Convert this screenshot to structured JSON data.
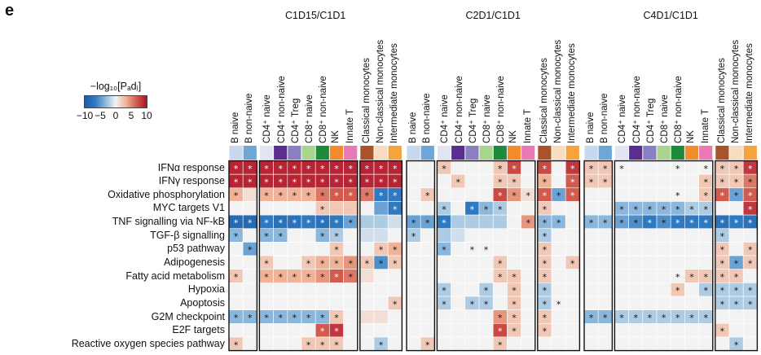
{
  "panel_letter": "e",
  "legend": {
    "title": "−log₁₀[Pₐdⱼ]",
    "ticks": [
      "−10",
      "−5",
      "0",
      "5",
      "10"
    ]
  },
  "colors": {
    "neg_strong": "#1e5aa8",
    "pos_strong": "#b0122c",
    "neutral": "#f3f3f3",
    "star": "#111111",
    "star_on_dark": "#ffffff"
  },
  "chart_data": {
    "type": "heatmap",
    "value_range": [
      -10,
      10
    ],
    "groups": [
      {
        "title": "C1D15/C1D1"
      },
      {
        "title": "C2D1/C1D1"
      },
      {
        "title": "C4D1/C1D1"
      }
    ],
    "columns": [
      {
        "label": "B naive",
        "subset": "B",
        "color": "#c7d9ee"
      },
      {
        "label": "B non-naive",
        "subset": "B",
        "color": "#6fa6d8"
      },
      {
        "label": "CD4⁺ naive",
        "subset": "T",
        "color": "#e2e6f3"
      },
      {
        "label": "CD4⁺ non-naive",
        "subset": "T",
        "color": "#5b2d8f"
      },
      {
        "label": "CD4⁺ Treg",
        "subset": "T",
        "color": "#8a7fc2"
      },
      {
        "label": "CD8⁺ naive",
        "subset": "T",
        "color": "#a7d58c"
      },
      {
        "label": "CD8⁺ non-naive",
        "subset": "T",
        "color": "#1d8a3c"
      },
      {
        "label": "NK",
        "subset": "T",
        "color": "#f28b2a"
      },
      {
        "label": "Innate T",
        "subset": "T",
        "color": "#e879b5"
      },
      {
        "label": "Classical monocytes",
        "subset": "M",
        "color": "#a9532b"
      },
      {
        "label": "Non-classical monocytes",
        "subset": "M",
        "color": "#f8dcc0"
      },
      {
        "label": "Intermediate monocytes",
        "subset": "M",
        "color": "#f5a33b"
      }
    ],
    "rows": [
      "IFNα response",
      "IFNγ response",
      "Oxidative phosphorylation",
      "MYC targets V1",
      "TNF signalling via NF-kB",
      "TGF-β signalling",
      "p53 pathway",
      "Adipogenesis",
      "Fatty acid metabolism",
      "Hypoxia",
      "Apoptosis",
      "G2M checkpoint",
      "E2F targets",
      "Reactive oxygen species pathway"
    ],
    "matrices": [
      {
        "values": [
          [
            9,
            9,
            9,
            9,
            9,
            9,
            9,
            9,
            9,
            9,
            9,
            9
          ],
          [
            9,
            9,
            9,
            9,
            9,
            9,
            9,
            9,
            9,
            9,
            9,
            9
          ],
          [
            3,
            1,
            3,
            3,
            3,
            3,
            5,
            6,
            6,
            5,
            -6,
            -6
          ],
          [
            0,
            0,
            0,
            0,
            0,
            0,
            2,
            2,
            2,
            0,
            -4,
            -6
          ],
          [
            -8,
            -8,
            -6,
            -7,
            -7,
            -6,
            -7,
            -6,
            -4,
            -2,
            -2,
            -1
          ],
          [
            -3,
            0,
            -3,
            -3,
            0,
            0,
            -3,
            -2,
            0,
            -1,
            -1,
            0
          ],
          [
            0,
            -4,
            0,
            0,
            0,
            0,
            0,
            2,
            0,
            0,
            2,
            3
          ],
          [
            0,
            0,
            2,
            0,
            0,
            2,
            3,
            3,
            4,
            2,
            -5,
            2
          ],
          [
            2,
            0,
            3,
            3,
            3,
            3,
            4,
            6,
            5,
            1,
            0,
            0
          ],
          [
            0,
            0,
            0,
            0,
            0,
            0,
            0,
            0,
            0,
            0,
            0,
            0
          ],
          [
            0,
            0,
            0,
            0,
            0,
            0,
            0,
            0,
            0,
            0,
            0,
            2
          ],
          [
            -3,
            -3,
            -3,
            -3,
            -3,
            -3,
            -3,
            2,
            0,
            1,
            1,
            0
          ],
          [
            0,
            0,
            0,
            0,
            0,
            0,
            6,
            8,
            0,
            0,
            0,
            0
          ],
          [
            2,
            0,
            0,
            0,
            0,
            2,
            2,
            2,
            0,
            0,
            -2,
            0
          ]
        ],
        "stars": [
          [
            1,
            1,
            1,
            1,
            1,
            1,
            1,
            1,
            1,
            1,
            1,
            1
          ],
          [
            1,
            1,
            1,
            1,
            1,
            1,
            1,
            1,
            1,
            1,
            1,
            1
          ],
          [
            1,
            0,
            1,
            1,
            1,
            1,
            1,
            1,
            1,
            1,
            1,
            1
          ],
          [
            0,
            0,
            0,
            0,
            0,
            0,
            1,
            0,
            0,
            0,
            0,
            1
          ],
          [
            1,
            1,
            1,
            1,
            1,
            1,
            1,
            1,
            1,
            0,
            0,
            0
          ],
          [
            1,
            0,
            1,
            1,
            0,
            0,
            1,
            1,
            0,
            0,
            0,
            0
          ],
          [
            0,
            1,
            0,
            0,
            0,
            0,
            0,
            1,
            0,
            0,
            1,
            1
          ],
          [
            0,
            0,
            1,
            0,
            0,
            1,
            1,
            1,
            1,
            1,
            1,
            1
          ],
          [
            1,
            0,
            1,
            1,
            1,
            1,
            1,
            1,
            1,
            0,
            0,
            0
          ],
          [
            0,
            0,
            0,
            0,
            0,
            0,
            0,
            0,
            0,
            0,
            0,
            0
          ],
          [
            0,
            0,
            0,
            0,
            0,
            0,
            0,
            0,
            0,
            0,
            0,
            1
          ],
          [
            1,
            1,
            1,
            1,
            1,
            1,
            1,
            1,
            0,
            0,
            0,
            0
          ],
          [
            0,
            0,
            0,
            0,
            0,
            0,
            1,
            1,
            0,
            0,
            0,
            0
          ],
          [
            1,
            0,
            0,
            0,
            0,
            1,
            1,
            1,
            0,
            0,
            1,
            0
          ]
        ]
      },
      {
        "values": [
          [
            0,
            0,
            2,
            0,
            0,
            0,
            2,
            7,
            0,
            7,
            0,
            8
          ],
          [
            0,
            0,
            0,
            2,
            0,
            0,
            2,
            2,
            0,
            3,
            0,
            6
          ],
          [
            0,
            2,
            0,
            0,
            0,
            0,
            7,
            4,
            1,
            6,
            -4,
            6
          ],
          [
            0,
            0,
            -2,
            0,
            -6,
            -3,
            -2,
            0,
            0,
            2,
            0,
            0
          ],
          [
            -4,
            -4,
            -6,
            -2,
            -2,
            -2,
            -2,
            0,
            4,
            -3,
            -3,
            0
          ],
          [
            -2,
            0,
            -2,
            -1,
            0,
            0,
            0,
            0,
            0,
            -2,
            0,
            0
          ],
          [
            0,
            0,
            -3,
            0,
            0,
            0,
            0,
            0,
            0,
            2,
            0,
            0
          ],
          [
            0,
            0,
            0,
            0,
            0,
            0,
            2,
            0,
            0,
            2,
            0,
            2
          ],
          [
            0,
            0,
            0,
            0,
            0,
            0,
            2,
            2,
            0,
            2,
            0,
            0
          ],
          [
            0,
            0,
            -2,
            0,
            0,
            -2,
            0,
            2,
            0,
            -2,
            0,
            0
          ],
          [
            0,
            0,
            -2,
            0,
            -2,
            -2,
            0,
            2,
            0,
            -2,
            0,
            0
          ],
          [
            0,
            0,
            0,
            0,
            0,
            0,
            4,
            2,
            0,
            2,
            0,
            0
          ],
          [
            0,
            0,
            0,
            0,
            0,
            0,
            7,
            2,
            0,
            2,
            0,
            0
          ],
          [
            0,
            2,
            0,
            0,
            0,
            0,
            2,
            0,
            0,
            0,
            0,
            0
          ]
        ],
        "stars": [
          [
            0,
            0,
            1,
            0,
            0,
            0,
            1,
            1,
            0,
            1,
            0,
            1
          ],
          [
            0,
            0,
            0,
            1,
            0,
            0,
            1,
            1,
            0,
            1,
            0,
            1
          ],
          [
            0,
            1,
            0,
            0,
            0,
            0,
            1,
            1,
            1,
            1,
            1,
            1
          ],
          [
            0,
            0,
            1,
            0,
            1,
            1,
            1,
            0,
            0,
            1,
            0,
            0
          ],
          [
            1,
            1,
            1,
            0,
            0,
            0,
            0,
            0,
            1,
            1,
            1,
            0
          ],
          [
            1,
            0,
            0,
            0,
            0,
            0,
            0,
            0,
            0,
            1,
            0,
            0
          ],
          [
            0,
            0,
            1,
            0,
            1,
            1,
            0,
            0,
            0,
            1,
            0,
            0
          ],
          [
            0,
            0,
            0,
            0,
            0,
            0,
            1,
            0,
            0,
            1,
            0,
            1
          ],
          [
            0,
            0,
            0,
            0,
            0,
            0,
            1,
            1,
            0,
            1,
            0,
            0
          ],
          [
            0,
            0,
            1,
            0,
            0,
            1,
            0,
            1,
            0,
            1,
            0,
            0
          ],
          [
            0,
            0,
            1,
            0,
            1,
            1,
            0,
            1,
            0,
            1,
            1,
            0
          ],
          [
            0,
            0,
            0,
            0,
            0,
            0,
            1,
            1,
            0,
            1,
            0,
            0
          ],
          [
            0,
            0,
            0,
            0,
            0,
            0,
            1,
            1,
            0,
            1,
            0,
            0
          ],
          [
            0,
            1,
            0,
            0,
            0,
            0,
            1,
            0,
            0,
            0,
            0,
            0
          ]
        ]
      },
      {
        "values": [
          [
            2,
            2,
            0,
            0,
            0,
            0,
            0,
            0,
            0,
            2,
            2,
            8
          ],
          [
            2,
            2,
            0,
            0,
            0,
            0,
            0,
            0,
            2,
            2,
            2,
            5
          ],
          [
            0,
            0,
            0,
            0,
            0,
            0,
            0,
            0,
            2,
            6,
            -4,
            6
          ],
          [
            0,
            0,
            -3,
            -3,
            -3,
            -3,
            -3,
            -2,
            -2,
            0,
            0,
            8
          ],
          [
            -3,
            -3,
            -4,
            -5,
            -6,
            -5,
            -6,
            -6,
            -6,
            -7,
            -6,
            -7
          ],
          [
            0,
            0,
            0,
            0,
            0,
            0,
            0,
            0,
            0,
            -2,
            0,
            0
          ],
          [
            0,
            0,
            0,
            0,
            0,
            0,
            0,
            0,
            0,
            2,
            0,
            2
          ],
          [
            0,
            0,
            0,
            0,
            0,
            0,
            0,
            0,
            0,
            2,
            -4,
            2
          ],
          [
            0,
            0,
            0,
            0,
            0,
            0,
            0,
            2,
            2,
            2,
            2,
            0
          ],
          [
            0,
            0,
            0,
            0,
            0,
            0,
            2,
            0,
            -2,
            -2,
            -2,
            -2
          ],
          [
            0,
            0,
            0,
            0,
            0,
            0,
            0,
            0,
            0,
            -2,
            -2,
            -2
          ],
          [
            -3,
            -3,
            -2,
            -2,
            -2,
            -2,
            -2,
            -2,
            -2,
            0,
            0,
            0
          ],
          [
            0,
            0,
            0,
            0,
            0,
            0,
            0,
            0,
            0,
            2,
            0,
            0
          ],
          [
            0,
            0,
            0,
            0,
            0,
            0,
            0,
            0,
            0,
            0,
            -2,
            0
          ]
        ],
        "stars": [
          [
            1,
            1,
            1,
            0,
            0,
            0,
            1,
            0,
            1,
            1,
            1,
            1
          ],
          [
            1,
            1,
            0,
            0,
            0,
            0,
            0,
            0,
            1,
            1,
            1,
            1
          ],
          [
            0,
            0,
            0,
            0,
            0,
            0,
            1,
            0,
            1,
            1,
            1,
            1
          ],
          [
            0,
            0,
            1,
            1,
            1,
            1,
            1,
            1,
            1,
            0,
            0,
            1
          ],
          [
            1,
            1,
            1,
            1,
            1,
            1,
            1,
            1,
            1,
            1,
            1,
            1
          ],
          [
            0,
            0,
            0,
            0,
            0,
            0,
            0,
            0,
            0,
            1,
            0,
            0
          ],
          [
            0,
            0,
            0,
            0,
            0,
            0,
            0,
            0,
            0,
            1,
            0,
            1
          ],
          [
            0,
            0,
            0,
            0,
            0,
            0,
            0,
            0,
            0,
            1,
            1,
            1
          ],
          [
            0,
            0,
            0,
            0,
            0,
            0,
            1,
            1,
            1,
            1,
            1,
            0
          ],
          [
            0,
            0,
            0,
            0,
            0,
            0,
            1,
            0,
            1,
            1,
            1,
            1
          ],
          [
            0,
            0,
            0,
            0,
            0,
            0,
            0,
            0,
            0,
            1,
            1,
            1
          ],
          [
            1,
            1,
            1,
            1,
            1,
            1,
            1,
            1,
            1,
            0,
            0,
            0
          ],
          [
            0,
            0,
            0,
            0,
            0,
            0,
            0,
            0,
            0,
            1,
            0,
            0
          ],
          [
            0,
            0,
            0,
            0,
            0,
            0,
            0,
            0,
            0,
            0,
            1,
            0
          ]
        ]
      }
    ]
  }
}
